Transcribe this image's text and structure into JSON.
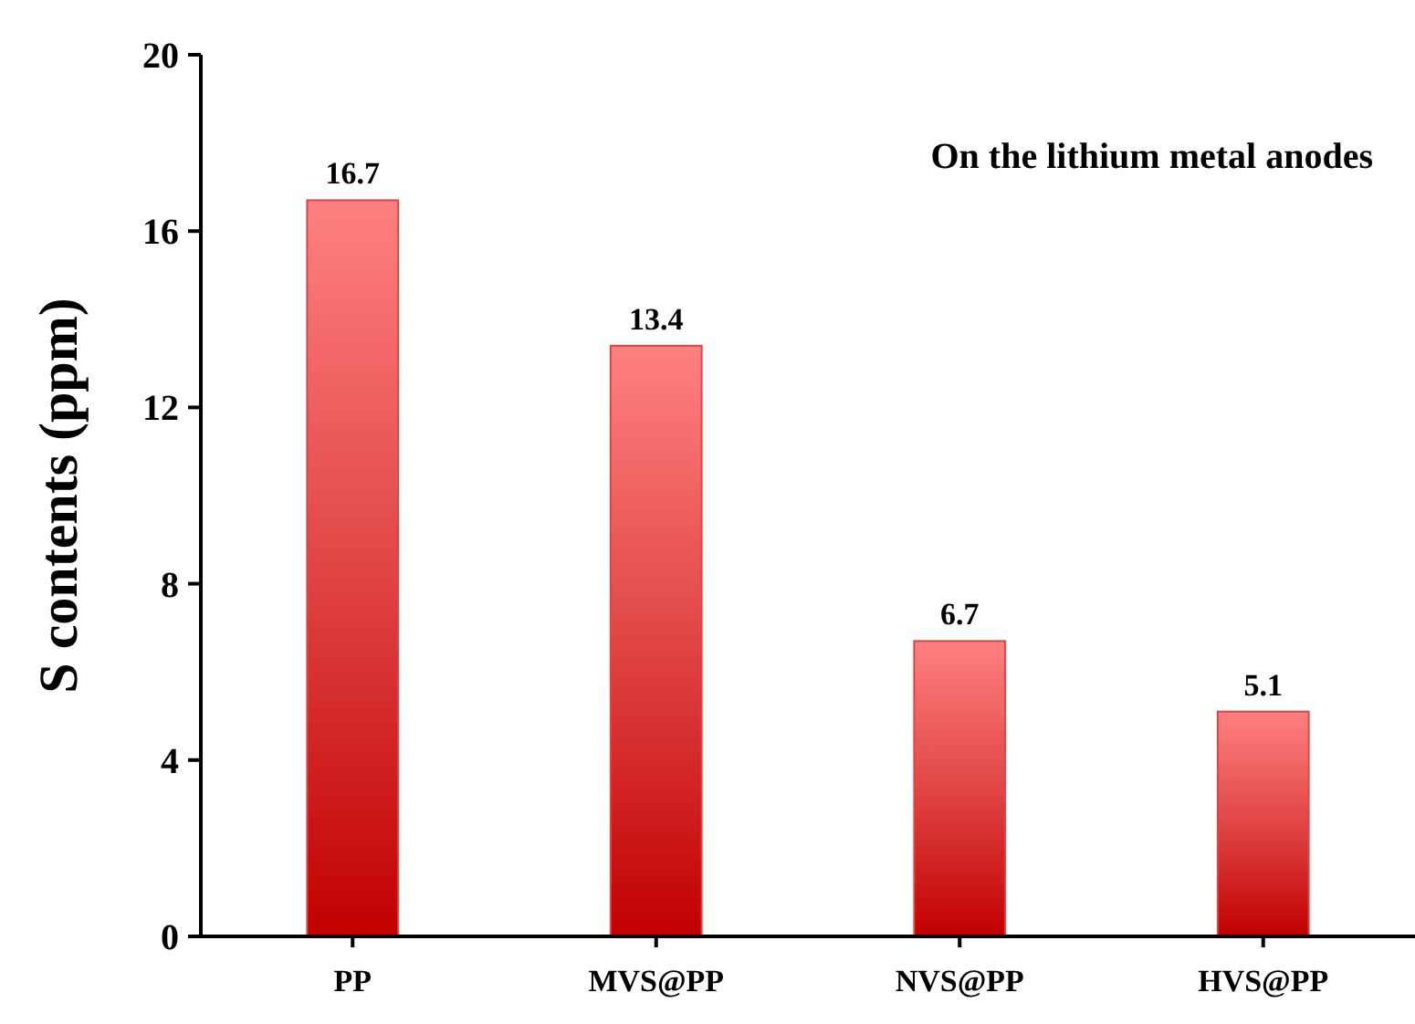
{
  "chart_data": {
    "type": "bar",
    "ylabel": "S contents (ppm)",
    "annotations": [
      "On the lithium metal anodes"
    ],
    "categories": [
      "PP",
      "MVS@PP",
      "NVS@PP",
      "HVS@PP"
    ],
    "values": [
      16.7,
      13.4,
      6.7,
      5.1
    ],
    "color": "#e04545",
    "ylim": [
      0,
      20
    ],
    "yticks": [
      0,
      4,
      8,
      12,
      16,
      20
    ],
    "data_labels": true,
    "grid": false
  }
}
